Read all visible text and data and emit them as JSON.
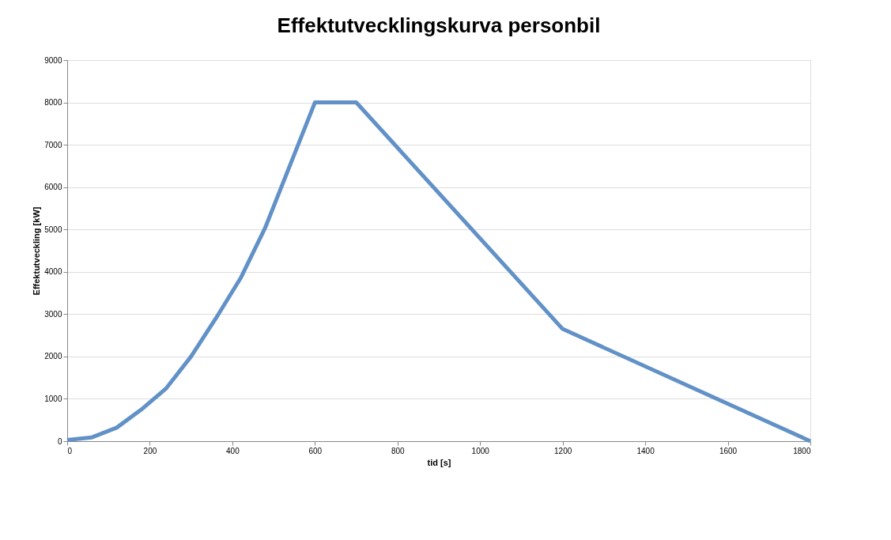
{
  "chart_data": {
    "type": "line",
    "title": "Effektutvecklingskurva personbil",
    "xlabel": "tid [s]",
    "ylabel": "Effektutveckling [kW]",
    "x": [
      0,
      60,
      120,
      180,
      240,
      300,
      360,
      420,
      480,
      600,
      700,
      1200,
      1800
    ],
    "series": [
      {
        "color": "#6191c7",
        "values": [
          30,
          90,
          320,
          750,
          1250,
          2000,
          2900,
          3850,
          5050,
          8000,
          8000,
          2650,
          0
        ]
      }
    ],
    "xlim": [
      0,
      1800
    ],
    "xticks": [
      0,
      200,
      400,
      600,
      800,
      1000,
      1200,
      1400,
      1600,
      1800
    ],
    "ylim": [
      0,
      9000
    ],
    "yticks": [
      0,
      1000,
      2000,
      3000,
      4000,
      5000,
      6000,
      7000,
      8000,
      9000
    ],
    "grid": "y",
    "marker": "none",
    "line_style": "solid"
  }
}
